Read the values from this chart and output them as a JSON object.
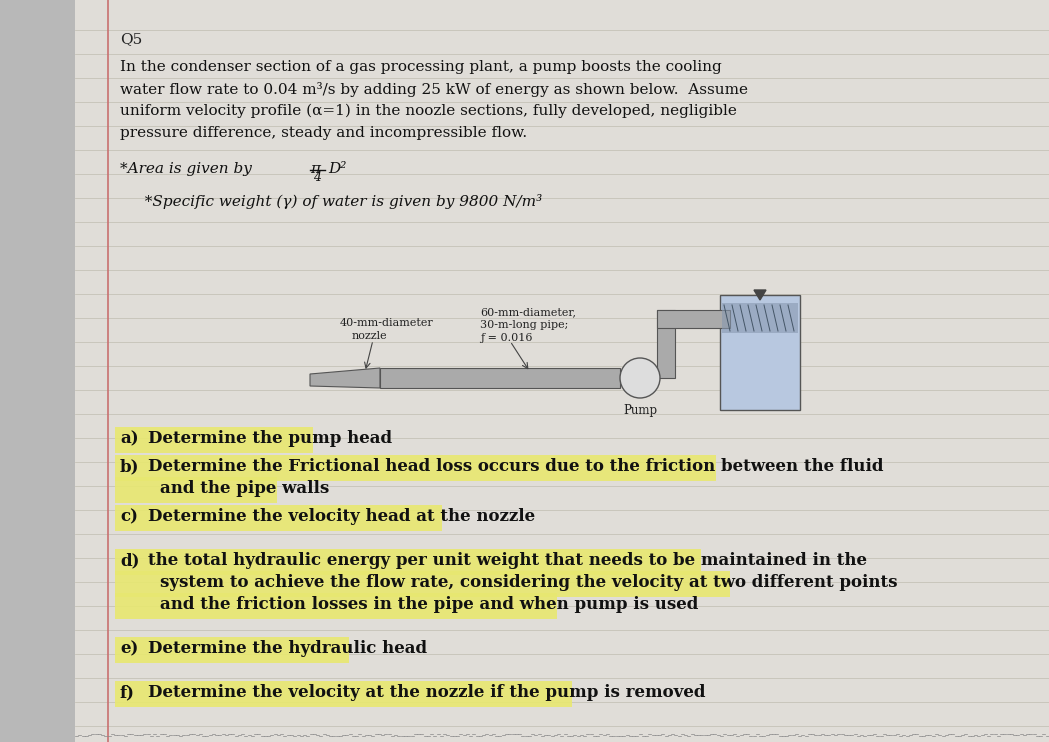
{
  "bg_color": "#b8b8b8",
  "page_color": "#e0ddd8",
  "margin_line_color": "#c87070",
  "title": "Q5",
  "intro_lines": [
    "In the condenser section of a gas processing plant, a pump boosts the cooling",
    "water flow rate to 0.04 m³/s by adding 25 kW of energy as shown below.  Assume",
    "uniform velocity profile (α=1) in the noozle sections, fully developed, negligible",
    "pressure difference, steady and incompressible flow."
  ],
  "area_label": "*Area is given by ",
  "sw_label": "  *Specific weight (γ) of water is given by 9800 N/m³",
  "highlight_color": "#e8e870",
  "questions": [
    {
      "label": "a)",
      "lines": [
        "Determine the pump head"
      ],
      "highlight": true
    },
    {
      "label": "b)",
      "lines": [
        "Determine the Frictional head loss occurs due to the friction between the fluid",
        "and the pipe walls"
      ],
      "highlight": true
    },
    {
      "label": "c)",
      "lines": [
        "Determine the velocity head at the nozzle"
      ],
      "highlight": true
    },
    {
      "label": "d)",
      "lines": [
        "the total hydraulic energy per unit weight that needs to be maintained in the",
        "system to achieve the flow rate, considering the velocity at two different points",
        "and the friction losses in the pipe and when pump is used"
      ],
      "highlight": true
    },
    {
      "label": "e)",
      "lines": [
        "Determine the hydraulic head"
      ],
      "highlight": true
    },
    {
      "label": "f)",
      "lines": [
        "Determine the velocity at the nozzle if the pump is removed"
      ],
      "highlight": true
    }
  ]
}
